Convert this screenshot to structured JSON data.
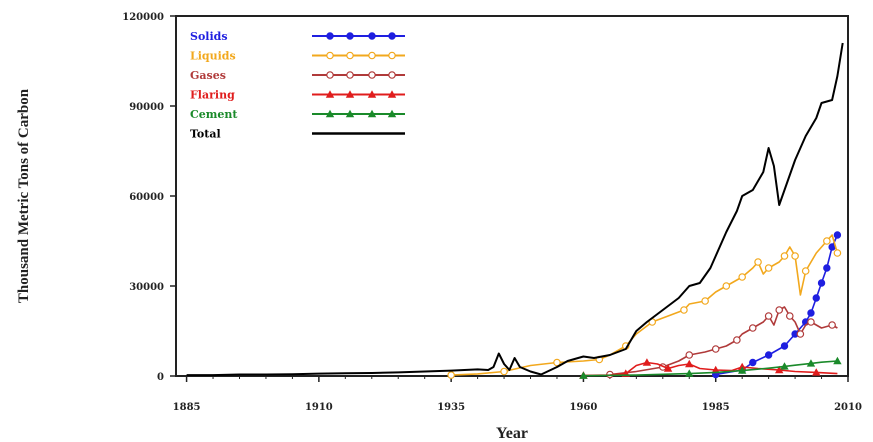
{
  "chart_data": {
    "type": "line",
    "title": "",
    "xlabel": "Year",
    "ylabel": "Thousand Metric Tons of Carbon",
    "xlim": [
      1883,
      2010
    ],
    "ylim": [
      0,
      120000
    ],
    "x_ticks": [
      1885,
      1910,
      1935,
      1960,
      1985,
      2010
    ],
    "y_ticks": [
      0,
      30000,
      60000,
      90000,
      120000
    ],
    "y_tick_labels": [
      "0",
      "30000",
      "60000",
      "90000",
      "120000"
    ],
    "legend_position": "top-left",
    "grid": false,
    "series": [
      {
        "name": "Solids",
        "color": "#1f1fe0",
        "marker": "circle-filled",
        "points": [
          [
            1985,
            500
          ],
          [
            1990,
            2000
          ],
          [
            1992,
            4500
          ],
          [
            1995,
            7000
          ],
          [
            1998,
            10000
          ],
          [
            2000,
            14000
          ],
          [
            2002,
            18000
          ],
          [
            2003,
            21000
          ],
          [
            2004,
            26000
          ],
          [
            2005,
            31000
          ],
          [
            2006,
            36000
          ],
          [
            2007,
            43000
          ],
          [
            2008,
            47000
          ]
        ]
      },
      {
        "name": "Liquids",
        "color": "#f2a81d",
        "marker": "circle-open",
        "points": [
          [
            1935,
            300
          ],
          [
            1940,
            700
          ],
          [
            1945,
            1500
          ],
          [
            1950,
            3500
          ],
          [
            1955,
            4500
          ],
          [
            1960,
            5000
          ],
          [
            1963,
            5500
          ],
          [
            1965,
            7000
          ],
          [
            1968,
            10000
          ],
          [
            1970,
            14000
          ],
          [
            1973,
            18000
          ],
          [
            1976,
            20000
          ],
          [
            1979,
            22000
          ],
          [
            1980,
            24000
          ],
          [
            1983,
            25000
          ],
          [
            1985,
            28000
          ],
          [
            1987,
            30000
          ],
          [
            1989,
            32000
          ],
          [
            1990,
            33000
          ],
          [
            1992,
            36000
          ],
          [
            1993,
            38000
          ],
          [
            1994,
            34000
          ],
          [
            1995,
            36000
          ],
          [
            1997,
            38000
          ],
          [
            1998,
            40000
          ],
          [
            1999,
            43000
          ],
          [
            2000,
            40000
          ],
          [
            2001,
            27000
          ],
          [
            2002,
            35000
          ],
          [
            2004,
            41000
          ],
          [
            2006,
            45000
          ],
          [
            2007,
            47000
          ],
          [
            2008,
            41000
          ]
        ]
      },
      {
        "name": "Gases",
        "color": "#b03a3a",
        "marker": "circle-open",
        "points": [
          [
            1965,
            500
          ],
          [
            1970,
            1500
          ],
          [
            1975,
            3000
          ],
          [
            1978,
            5000
          ],
          [
            1980,
            7000
          ],
          [
            1983,
            8000
          ],
          [
            1985,
            9000
          ],
          [
            1987,
            10000
          ],
          [
            1989,
            12000
          ],
          [
            1990,
            14000
          ],
          [
            1992,
            16000
          ],
          [
            1994,
            18000
          ],
          [
            1995,
            20000
          ],
          [
            1996,
            17000
          ],
          [
            1997,
            22000
          ],
          [
            1998,
            23000
          ],
          [
            1999,
            20000
          ],
          [
            2000,
            18000
          ],
          [
            2001,
            14000
          ],
          [
            2002,
            17000
          ],
          [
            2003,
            18000
          ],
          [
            2005,
            16000
          ],
          [
            2007,
            17000
          ],
          [
            2008,
            16000
          ]
        ]
      },
      {
        "name": "Flaring",
        "color": "#e01c1c",
        "marker": "triangle-filled",
        "points": [
          [
            1960,
            200
          ],
          [
            1965,
            300
          ],
          [
            1968,
            800
          ],
          [
            1970,
            3500
          ],
          [
            1972,
            4500
          ],
          [
            1974,
            4000
          ],
          [
            1976,
            2500
          ],
          [
            1978,
            3500
          ],
          [
            1980,
            4000
          ],
          [
            1982,
            2500
          ],
          [
            1985,
            2000
          ],
          [
            1988,
            1800
          ],
          [
            1990,
            3000
          ],
          [
            1993,
            2500
          ],
          [
            1997,
            2000
          ],
          [
            2000,
            1500
          ],
          [
            2004,
            1200
          ],
          [
            2008,
            800
          ]
        ]
      },
      {
        "name": "Cement",
        "color": "#1a8a2a",
        "marker": "triangle-filled",
        "points": [
          [
            1960,
            100
          ],
          [
            1970,
            300
          ],
          [
            1980,
            800
          ],
          [
            1985,
            1200
          ],
          [
            1990,
            1800
          ],
          [
            1995,
            2600
          ],
          [
            1998,
            3200
          ],
          [
            2000,
            3600
          ],
          [
            2003,
            4200
          ],
          [
            2005,
            4600
          ],
          [
            2008,
            5000
          ]
        ]
      },
      {
        "name": "Total",
        "color": "#000000",
        "marker": "none",
        "points": [
          [
            1885,
            300
          ],
          [
            1890,
            300
          ],
          [
            1895,
            500
          ],
          [
            1900,
            500
          ],
          [
            1905,
            600
          ],
          [
            1910,
            800
          ],
          [
            1915,
            900
          ],
          [
            1920,
            1000
          ],
          [
            1925,
            1200
          ],
          [
            1930,
            1500
          ],
          [
            1935,
            1800
          ],
          [
            1940,
            2200
          ],
          [
            1942,
            2000
          ],
          [
            1943,
            3000
          ],
          [
            1944,
            7500
          ],
          [
            1945,
            4000
          ],
          [
            1946,
            2000
          ],
          [
            1947,
            6000
          ],
          [
            1948,
            3000
          ],
          [
            1950,
            1500
          ],
          [
            1952,
            500
          ],
          [
            1955,
            3000
          ],
          [
            1957,
            5000
          ],
          [
            1960,
            6500
          ],
          [
            1962,
            6000
          ],
          [
            1965,
            7000
          ],
          [
            1968,
            9000
          ],
          [
            1970,
            15000
          ],
          [
            1972,
            18000
          ],
          [
            1975,
            22000
          ],
          [
            1978,
            26000
          ],
          [
            1980,
            30000
          ],
          [
            1982,
            31000
          ],
          [
            1984,
            36000
          ],
          [
            1985,
            40000
          ],
          [
            1987,
            48000
          ],
          [
            1989,
            55000
          ],
          [
            1990,
            60000
          ],
          [
            1992,
            62000
          ],
          [
            1994,
            68000
          ],
          [
            1995,
            76000
          ],
          [
            1996,
            70000
          ],
          [
            1997,
            57000
          ],
          [
            1998,
            62000
          ],
          [
            2000,
            72000
          ],
          [
            2002,
            80000
          ],
          [
            2004,
            86000
          ],
          [
            2005,
            91000
          ],
          [
            2007,
            92000
          ],
          [
            2008,
            100000
          ],
          [
            2009,
            111000
          ]
        ]
      }
    ]
  }
}
